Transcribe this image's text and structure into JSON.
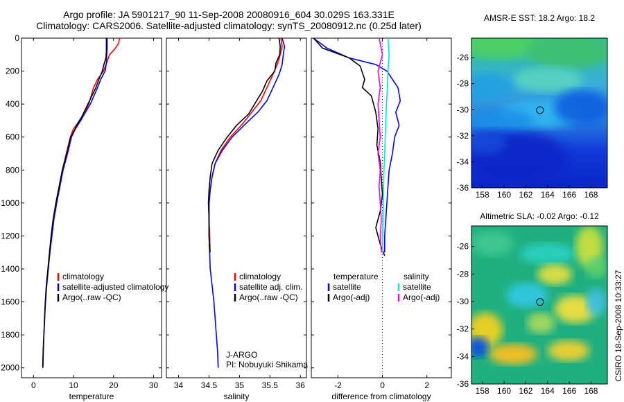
{
  "header": {
    "title_line1": "Argo profile: JA 5901217_90 11-Sep-2008 20080916_604 30.029S 163.331E",
    "title_line2": "Climatology: CARS2006. Satellite-adjusted climatology: synTS_20080912.nc (0.25d later)"
  },
  "colors": {
    "climatology": "#ff0000",
    "satellite": "#0000ff",
    "argo": "#000000",
    "sat_salinity": "#00e5e5",
    "argo_salinity": "#ff00ff"
  },
  "chart_data": [
    {
      "type": "line",
      "panel": "temperature",
      "xlabel": "temperature",
      "xlim": [
        -3,
        32
      ],
      "ylim": [
        0,
        2060
      ],
      "y_reversed": true,
      "xticks": [
        "0",
        "10",
        "20",
        "30"
      ],
      "yticks": [
        "0",
        "200",
        "400",
        "600",
        "800",
        "1000",
        "1200",
        "1400",
        "1600",
        "1800",
        "2000"
      ],
      "legend": [
        "climatology",
        "satellite-adjusted climatology",
        "Argo(..raw -QC)"
      ],
      "series": [
        {
          "name": "climatology",
          "color": "#ff0000",
          "points": [
            [
              21.5,
              0
            ],
            [
              21.3,
              30
            ],
            [
              20.5,
              60
            ],
            [
              19.0,
              100
            ],
            [
              18.3,
              150
            ],
            [
              17.5,
              200
            ],
            [
              16.0,
              250
            ],
            [
              15.0,
              300
            ],
            [
              13.8,
              400
            ],
            [
              12.8,
              450
            ],
            [
              11.5,
              500
            ],
            [
              10.0,
              550
            ],
            [
              9.2,
              600
            ],
            [
              8.2,
              700
            ],
            [
              7.2,
              800
            ],
            [
              6.4,
              900
            ],
            [
              5.6,
              1000
            ],
            [
              5.0,
              1100
            ],
            [
              4.5,
              1200
            ],
            [
              4.0,
              1300
            ]
          ]
        },
        {
          "name": "satellite-adjusted climatology",
          "color": "#0000ff",
          "points": [
            [
              18.4,
              0
            ],
            [
              18.4,
              30
            ],
            [
              18.4,
              60
            ],
            [
              18.3,
              100
            ],
            [
              18.2,
              150
            ],
            [
              17.9,
              200
            ],
            [
              16.8,
              250
            ],
            [
              16.0,
              300
            ],
            [
              14.2,
              400
            ],
            [
              13.0,
              450
            ],
            [
              11.8,
              500
            ],
            [
              10.5,
              550
            ],
            [
              9.5,
              600
            ],
            [
              8.5,
              700
            ],
            [
              7.4,
              800
            ],
            [
              6.6,
              900
            ],
            [
              5.8,
              1000
            ],
            [
              5.1,
              1100
            ],
            [
              4.6,
              1200
            ],
            [
              4.1,
              1300
            ],
            [
              3.7,
              1400
            ],
            [
              3.3,
              1500
            ],
            [
              3.0,
              1600
            ],
            [
              2.8,
              1700
            ],
            [
              2.6,
              1800
            ],
            [
              2.45,
              1900
            ],
            [
              2.35,
              2000
            ]
          ]
        },
        {
          "name": "Argo(..raw -QC)",
          "color": "#000000",
          "points": [
            [
              18.2,
              0
            ],
            [
              18.2,
              40
            ],
            [
              18.2,
              80
            ],
            [
              18.1,
              120
            ],
            [
              17.6,
              160
            ],
            [
              17.2,
              200
            ],
            [
              16.5,
              240
            ],
            [
              15.6,
              300
            ],
            [
              14.0,
              380
            ],
            [
              13.2,
              420
            ],
            [
              12.0,
              480
            ],
            [
              11.0,
              520
            ],
            [
              10.2,
              560
            ],
            [
              9.3,
              600
            ],
            [
              8.3,
              700
            ],
            [
              7.2,
              800
            ],
            [
              6.4,
              900
            ],
            [
              5.6,
              1000
            ],
            [
              4.9,
              1100
            ],
            [
              4.4,
              1200
            ],
            [
              4.0,
              1300
            ],
            [
              3.6,
              1400
            ],
            [
              3.2,
              1500
            ],
            [
              2.95,
              1600
            ],
            [
              2.75,
              1700
            ],
            [
              2.6,
              1800
            ],
            [
              2.4,
              1900
            ],
            [
              2.3,
              2000
            ]
          ]
        }
      ]
    },
    {
      "type": "line",
      "panel": "salinity",
      "xlabel": "salinity",
      "xlim": [
        33.8,
        36.1
      ],
      "ylim": [
        0,
        2060
      ],
      "y_reversed": true,
      "xticks": [
        "34",
        "34.5",
        "35",
        "35.5",
        "36"
      ],
      "legend": [
        "climatology",
        "satellite adj. clim.",
        "Argo(..raw -QC)"
      ],
      "annotation": [
        "J-ARGO",
        "PI: Nobuyuki Shikama"
      ],
      "series": [
        {
          "name": "climatology",
          "color": "#ff0000",
          "points": [
            [
              35.68,
              0
            ],
            [
              35.7,
              50
            ],
            [
              35.67,
              100
            ],
            [
              35.62,
              160
            ],
            [
              35.55,
              220
            ],
            [
              35.45,
              300
            ],
            [
              35.35,
              380
            ],
            [
              35.2,
              450
            ],
            [
              35.05,
              520
            ],
            [
              34.85,
              600
            ],
            [
              34.7,
              680
            ],
            [
              34.6,
              760
            ],
            [
              34.55,
              840
            ],
            [
              34.52,
              920
            ],
            [
              34.5,
              1000
            ],
            [
              34.5,
              1100
            ],
            [
              34.51,
              1200
            ],
            [
              34.52,
              1300
            ]
          ]
        },
        {
          "name": "satellite adj. clim.",
          "color": "#0000ff",
          "points": [
            [
              35.7,
              0
            ],
            [
              35.74,
              50
            ],
            [
              35.72,
              100
            ],
            [
              35.7,
              160
            ],
            [
              35.65,
              220
            ],
            [
              35.55,
              300
            ],
            [
              35.45,
              380
            ],
            [
              35.3,
              450
            ],
            [
              35.1,
              520
            ],
            [
              34.88,
              600
            ],
            [
              34.72,
              680
            ],
            [
              34.6,
              760
            ],
            [
              34.55,
              840
            ],
            [
              34.52,
              920
            ],
            [
              34.5,
              1000
            ],
            [
              34.5,
              1100
            ],
            [
              34.5,
              1200
            ],
            [
              34.51,
              1300
            ],
            [
              34.52,
              1400
            ],
            [
              34.55,
              1500
            ],
            [
              34.58,
              1600
            ],
            [
              34.6,
              1700
            ],
            [
              34.62,
              1800
            ],
            [
              34.64,
              1900
            ],
            [
              34.65,
              2000
            ]
          ]
        },
        {
          "name": "Argo(..raw -QC)",
          "color": "#000000",
          "points": [
            [
              35.65,
              0
            ],
            [
              35.67,
              50
            ],
            [
              35.66,
              100
            ],
            [
              35.6,
              150
            ],
            [
              35.58,
              200
            ],
            [
              35.45,
              260
            ],
            [
              35.38,
              320
            ],
            [
              35.25,
              400
            ],
            [
              35.15,
              460
            ],
            [
              34.95,
              530
            ],
            [
              34.8,
              600
            ],
            [
              34.65,
              680
            ],
            [
              34.55,
              760
            ],
            [
              34.52,
              840
            ],
            [
              34.5,
              920
            ],
            [
              34.49,
              1000
            ],
            [
              34.5,
              1100
            ],
            [
              34.5,
              1200
            ],
            [
              34.51,
              1300
            ]
          ]
        }
      ]
    },
    {
      "type": "line",
      "panel": "difference",
      "xlabel": "difference from climatology",
      "xlim": [
        -3.2,
        3.1
      ],
      "ylim": [
        0,
        2060
      ],
      "y_reversed": true,
      "xticks": [
        "-2",
        "0",
        "2"
      ],
      "legend_left_title": "temperature",
      "legend_right_title": "salinity",
      "legend": [
        "satellite",
        "Argo(-adj)",
        "satellite",
        "Argo(-adj)"
      ],
      "series": [
        {
          "name": "satellite (temperature)",
          "color": "#0000ff",
          "points": [
            [
              -3.1,
              0
            ],
            [
              -2.5,
              60
            ],
            [
              -1.5,
              120
            ],
            [
              -0.3,
              160
            ],
            [
              0.2,
              200
            ],
            [
              0.7,
              300
            ],
            [
              0.8,
              380
            ],
            [
              0.6,
              450
            ],
            [
              0.75,
              530
            ],
            [
              0.55,
              600
            ],
            [
              0.45,
              700
            ],
            [
              0.3,
              800
            ],
            [
              0.25,
              900
            ],
            [
              0.2,
              1000
            ],
            [
              0.15,
              1100
            ],
            [
              0.1,
              1200
            ],
            [
              0.1,
              1300
            ]
          ]
        },
        {
          "name": "Argo(-adj) (temperature)",
          "color": "#000000",
          "points": [
            [
              -3.1,
              0
            ],
            [
              -2.7,
              60
            ],
            [
              -1.5,
              120
            ],
            [
              -1.0,
              170
            ],
            [
              -0.8,
              250
            ],
            [
              -0.9,
              300
            ],
            [
              -0.5,
              350
            ],
            [
              -0.3,
              450
            ],
            [
              -0.2,
              550
            ],
            [
              -0.25,
              650
            ],
            [
              -0.1,
              750
            ],
            [
              -0.05,
              850
            ],
            [
              0.0,
              950
            ],
            [
              -0.1,
              1050
            ],
            [
              -0.3,
              1150
            ],
            [
              -0.1,
              1250
            ],
            [
              0.1,
              1320
            ]
          ]
        },
        {
          "name": "satellite (salinity)",
          "color": "#00e5e5",
          "points": [
            [
              0.25,
              0
            ],
            [
              0.3,
              100
            ],
            [
              0.25,
              200
            ],
            [
              0.22,
              300
            ],
            [
              0.18,
              400
            ],
            [
              0.15,
              500
            ],
            [
              0.12,
              600
            ],
            [
              0.1,
              700
            ],
            [
              0.07,
              800
            ],
            [
              0.05,
              900
            ],
            [
              0.04,
              1000
            ],
            [
              0.02,
              1100
            ],
            [
              0.01,
              1200
            ],
            [
              0.0,
              1300
            ]
          ]
        },
        {
          "name": "Argo(-adj) (salinity)",
          "color": "#ff00ff",
          "points": [
            [
              -0.15,
              0
            ],
            [
              0.0,
              100
            ],
            [
              -0.2,
              200
            ],
            [
              -0.1,
              300
            ],
            [
              -0.2,
              400
            ],
            [
              -0.15,
              500
            ],
            [
              -0.1,
              600
            ],
            [
              -0.2,
              700
            ],
            [
              -0.1,
              800
            ],
            [
              -0.15,
              900
            ],
            [
              -0.1,
              1000
            ],
            [
              -0.05,
              1100
            ],
            [
              -0.1,
              1200
            ],
            [
              -0.05,
              1300
            ]
          ]
        }
      ]
    },
    {
      "type": "heatmap",
      "panel": "sst_map",
      "title": "AMSR-E SST: 18.2 Argo: 18.2",
      "xlim": [
        157,
        169.5
      ],
      "ylim": [
        -36,
        -24.5
      ],
      "xticks": [
        "158",
        "160",
        "162",
        "164",
        "166",
        "168"
      ],
      "yticks": [
        "-26",
        "-28",
        "-30",
        "-32",
        "-34",
        "-36"
      ],
      "argo_position": [
        163.3,
        -30.03
      ]
    },
    {
      "type": "heatmap",
      "panel": "sla_map",
      "title": "Altimetric SLA: -0.02 Argo: -0.12",
      "xlim": [
        157,
        169.5
      ],
      "ylim": [
        -36,
        -24.5
      ],
      "xticks": [
        "158",
        "160",
        "162",
        "164",
        "166",
        "168"
      ],
      "yticks": [
        "-26",
        "-28",
        "-30",
        "-32",
        "-34",
        "-36"
      ],
      "argo_position": [
        163.3,
        -30.03
      ]
    }
  ],
  "footer": {
    "credit": "CSIRO 18-Sep-2008 10:33:27"
  }
}
